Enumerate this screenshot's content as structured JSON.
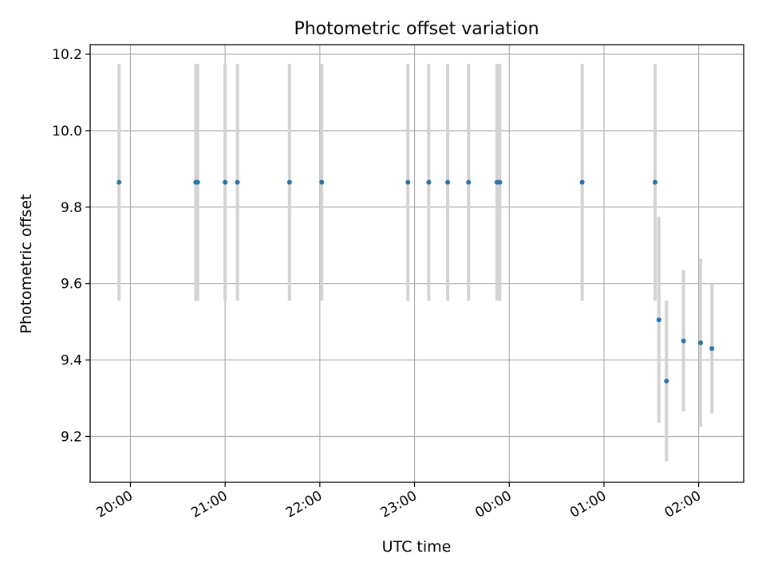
{
  "chart_data": {
    "type": "scatter",
    "title": "Photometric offset variation",
    "xlabel": "UTC time",
    "ylabel": "Photometric offset",
    "x_tick_labels": [
      "20:00",
      "21:00",
      "22:00",
      "23:00",
      "00:00",
      "01:00",
      "02:00"
    ],
    "x_tick_hours": [
      20,
      21,
      22,
      23,
      24,
      25,
      26
    ],
    "y_ticks": [
      9.2,
      9.4,
      9.6,
      9.8,
      10.0,
      10.2
    ],
    "y_tick_labels": [
      "9.2",
      "9.4",
      "9.6",
      "9.8",
      "10.0",
      "10.2"
    ],
    "xlim_hours": [
      19.575,
      26.475
    ],
    "ylim": [
      9.08,
      10.225
    ],
    "grid": true,
    "series": [
      {
        "marker_color": "#1f77b4",
        "errorbar_color": "#d3d3d3",
        "points": [
          {
            "time": "19:52",
            "hour": 19.88,
            "y": 9.865,
            "err": 0.31
          },
          {
            "time": "20:41",
            "hour": 20.69,
            "y": 9.865,
            "err": 0.31
          },
          {
            "time": "20:42",
            "hour": 20.71,
            "y": 9.865,
            "err": 0.31
          },
          {
            "time": "21:00",
            "hour": 21.0,
            "y": 9.865,
            "err": 0.31
          },
          {
            "time": "21:08",
            "hour": 21.13,
            "y": 9.865,
            "err": 0.31
          },
          {
            "time": "21:41",
            "hour": 21.68,
            "y": 9.865,
            "err": 0.31
          },
          {
            "time": "22:01",
            "hour": 22.02,
            "y": 9.865,
            "err": 0.31
          },
          {
            "time": "22:56",
            "hour": 22.93,
            "y": 9.865,
            "err": 0.31
          },
          {
            "time": "23:09",
            "hour": 23.15,
            "y": 9.865,
            "err": 0.31
          },
          {
            "time": "23:21",
            "hour": 23.35,
            "y": 9.865,
            "err": 0.31
          },
          {
            "time": "23:34",
            "hour": 23.57,
            "y": 9.865,
            "err": 0.31
          },
          {
            "time": "23:52",
            "hour": 23.87,
            "y": 9.865,
            "err": 0.31
          },
          {
            "time": "23:54",
            "hour": 23.9,
            "y": 9.865,
            "err": 0.31
          },
          {
            "time": "00:46",
            "hour": 24.77,
            "y": 9.865,
            "err": 0.31
          },
          {
            "time": "01:32",
            "hour": 25.54,
            "y": 9.865,
            "err": 0.31
          },
          {
            "time": "01:35",
            "hour": 25.58,
            "y": 9.505,
            "err": 0.27
          },
          {
            "time": "01:40",
            "hour": 25.66,
            "y": 9.345,
            "err": 0.21
          },
          {
            "time": "01:50",
            "hour": 25.84,
            "y": 9.45,
            "err": 0.185
          },
          {
            "time": "02:01",
            "hour": 26.02,
            "y": 9.445,
            "err": 0.22
          },
          {
            "time": "02:08",
            "hour": 26.14,
            "y": 9.43,
            "err": 0.17
          }
        ]
      }
    ]
  }
}
